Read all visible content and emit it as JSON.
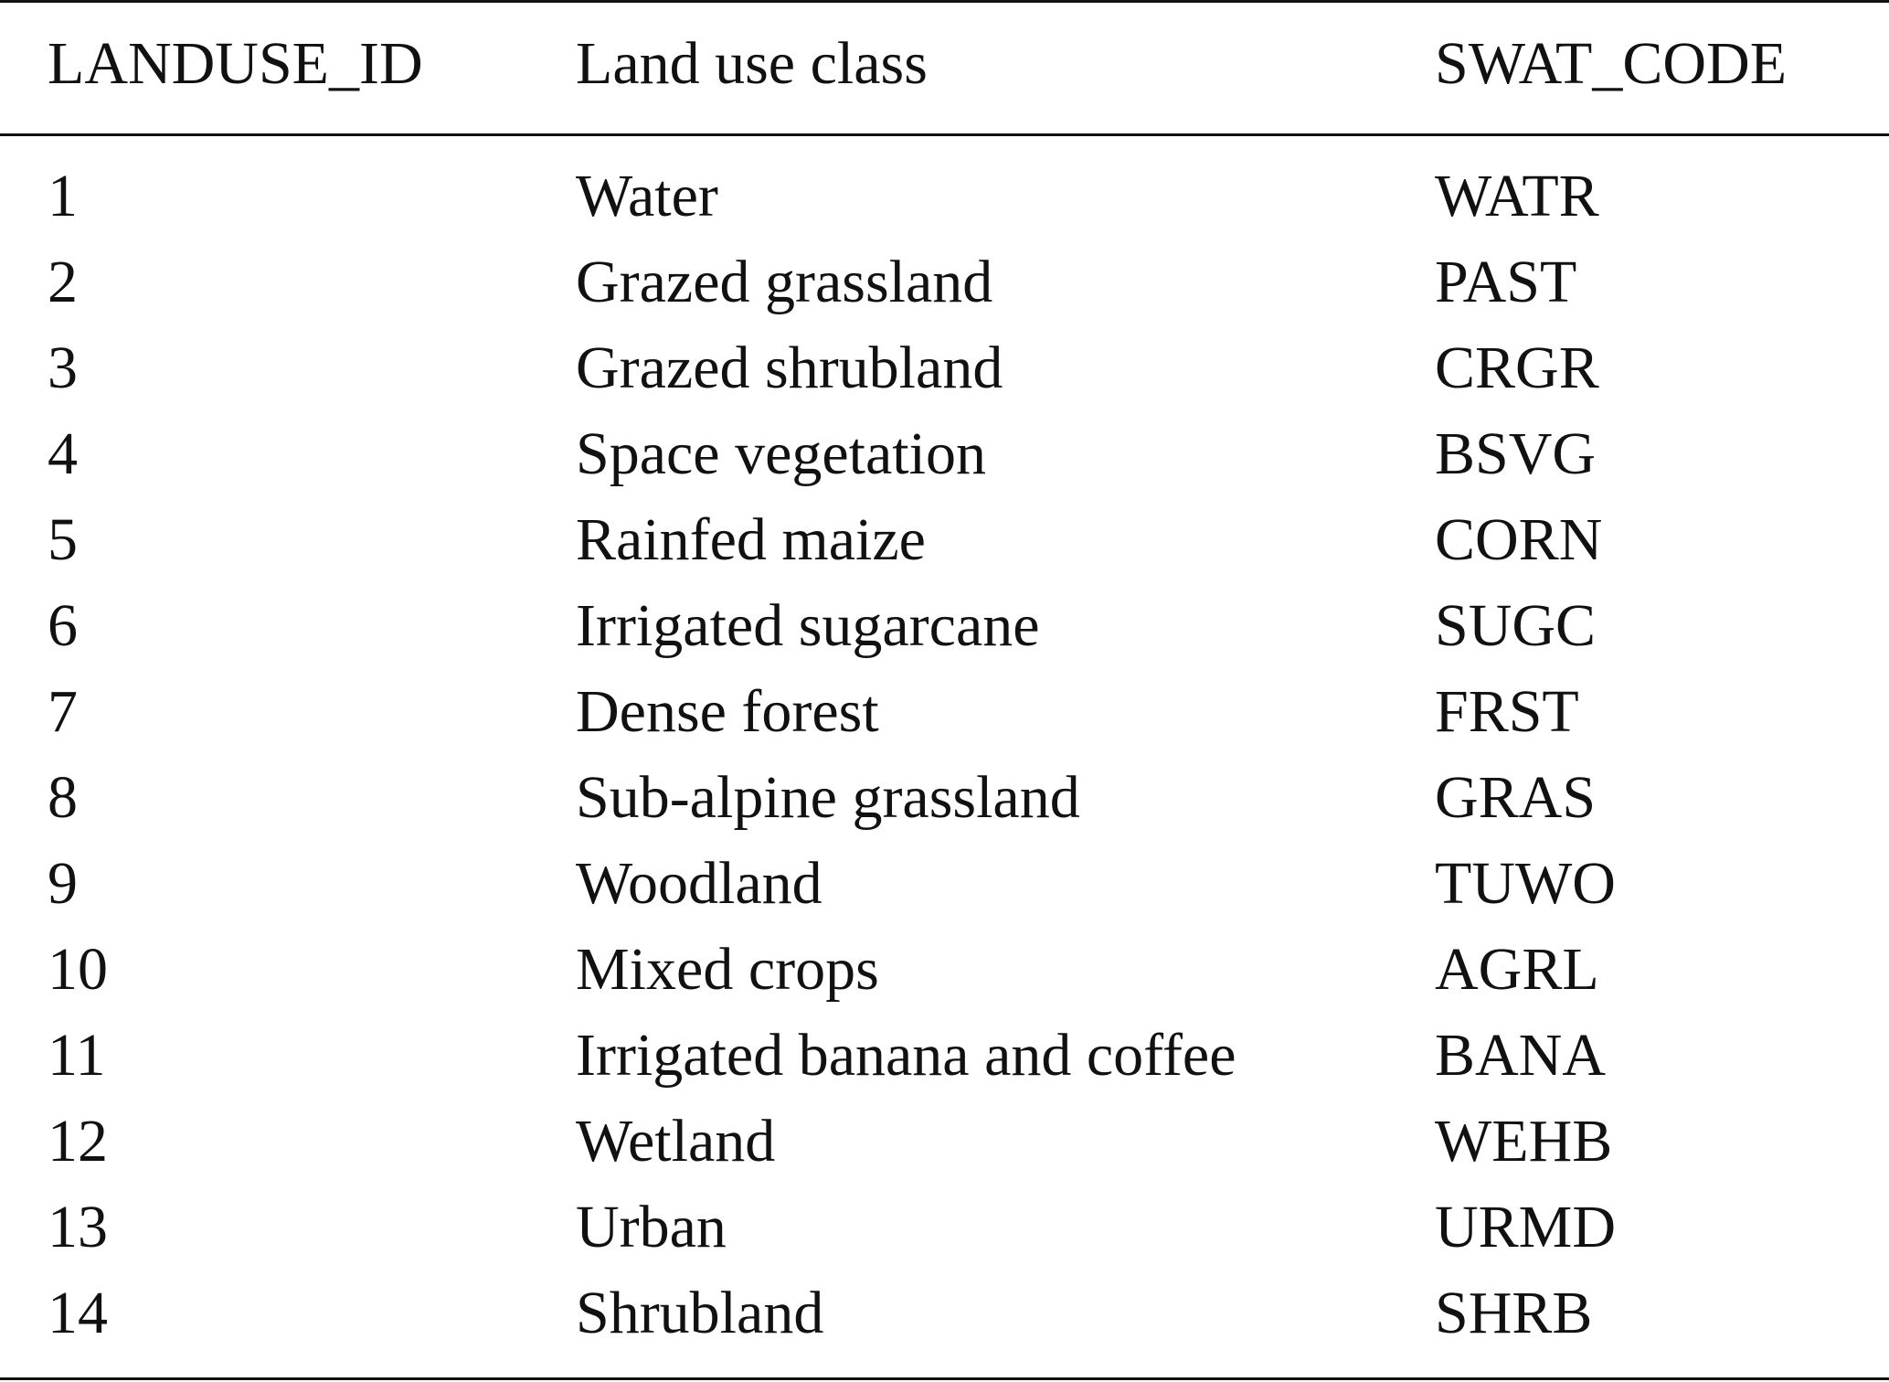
{
  "table": {
    "headers": [
      "LANDUSE_ID",
      "Land use class",
      "SWAT_CODE"
    ],
    "rows": [
      [
        "1",
        "Water",
        "WATR"
      ],
      [
        "2",
        "Grazed grassland",
        "PAST"
      ],
      [
        "3",
        "Grazed shrubland",
        "CRGR"
      ],
      [
        "4",
        "Space vegetation",
        "BSVG"
      ],
      [
        "5",
        "Rainfed maize",
        "CORN"
      ],
      [
        "6",
        "Irrigated sugarcane",
        "SUGC"
      ],
      [
        "7",
        "Dense forest",
        "FRST"
      ],
      [
        "8",
        "Sub-alpine grassland",
        "GRAS"
      ],
      [
        "9",
        "Woodland",
        "TUWO"
      ],
      [
        "10",
        "Mixed crops",
        "AGRL"
      ],
      [
        "11",
        "Irrigated banana and coffee",
        "BANA"
      ],
      [
        "12",
        "Wetland",
        "WEHB"
      ],
      [
        "13",
        "Urban",
        "URMD"
      ],
      [
        "14",
        "Shrubland",
        "SHRB"
      ]
    ]
  }
}
